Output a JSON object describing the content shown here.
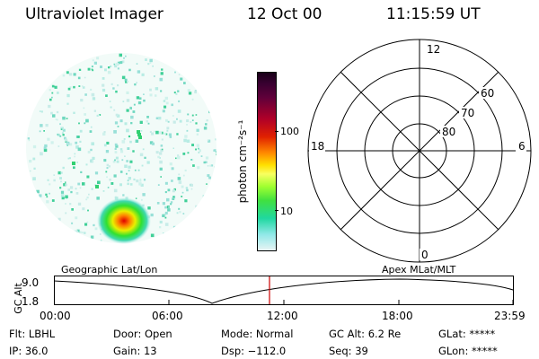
{
  "header": {
    "instrument": "Ultraviolet Imager",
    "date": "12 Oct 00",
    "time": "11:15:59 UT"
  },
  "colorbar": {
    "unit_label": "photon cm⁻²s⁻¹",
    "ticks": [
      "100",
      "10"
    ]
  },
  "polar_grid": {
    "mlt_labels": [
      "12",
      "18",
      "6",
      "0"
    ],
    "lat_labels": [
      "60",
      "70",
      "80"
    ]
  },
  "timeline": {
    "left_title": "Geographic Lat/Lon",
    "right_title": "Apex MLat/MLT",
    "y_axis_label": "GC Alt",
    "y_ticks": [
      "9.0",
      "1.8"
    ],
    "x_ticks": [
      "00:00",
      "06:00",
      "12:00",
      "18:00",
      "23:59"
    ],
    "current_time_marker": "11:15:59"
  },
  "info": {
    "filter": "Flt: LBHL",
    "ip": "IP: 36.0",
    "door": "Door: Open",
    "gain": "Gain: 13",
    "mode": "Mode: Normal",
    "dsp": "Dsp: −112.0",
    "gc_alt": "GC Alt: 6.2 Re",
    "seq": "Seq: 39",
    "glat": "GLat: *****",
    "glon": "GLon: *****"
  }
}
